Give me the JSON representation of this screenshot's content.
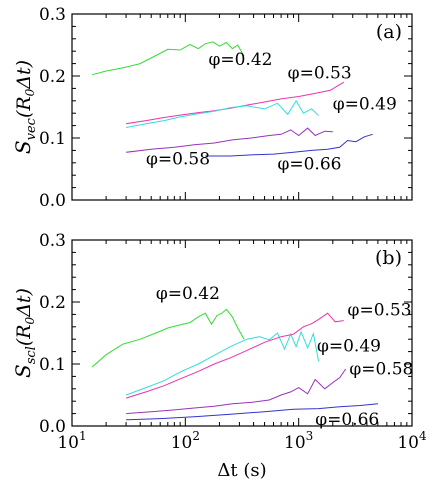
{
  "chart_data": [
    {
      "type": "line",
      "panel_label": "(a)",
      "ylabel_main": "S",
      "ylabel_sub": "vec",
      "ylabel_args": "(R",
      "ylabel_args_sub": "0",
      "ylabel_tail": "Δt)",
      "xscale": "log",
      "xlim": [
        10,
        10000
      ],
      "ylim": [
        0.0,
        0.3
      ],
      "yticks": [
        "0.0",
        "0.1",
        "0.2",
        "0.3"
      ],
      "grid": false,
      "series": [
        {
          "name": "φ=0.42",
          "color": "#33dd33",
          "x": [
            15,
            20,
            28,
            40,
            55,
            70,
            90,
            110,
            130,
            150,
            175,
            200,
            230,
            260,
            290,
            330
          ],
          "y": [
            0.202,
            0.208,
            0.213,
            0.22,
            0.233,
            0.243,
            0.242,
            0.251,
            0.244,
            0.252,
            0.255,
            0.248,
            0.254,
            0.244,
            0.25,
            0.232
          ]
        },
        {
          "name": "φ=0.53",
          "color": "#ee33aa",
          "x": [
            30,
            45,
            65,
            90,
            130,
            180,
            250,
            350,
            500,
            700,
            1000,
            1400,
            1900,
            2500
          ],
          "y": [
            0.123,
            0.128,
            0.133,
            0.137,
            0.141,
            0.144,
            0.148,
            0.153,
            0.158,
            0.163,
            0.167,
            0.172,
            0.177,
            0.19
          ]
        },
        {
          "name": "φ=0.49",
          "color": "#33dddd",
          "x": [
            30,
            45,
            65,
            90,
            130,
            180,
            250,
            350,
            500,
            650,
            800,
            950,
            1100,
            1300,
            1500
          ],
          "y": [
            0.117,
            0.123,
            0.128,
            0.134,
            0.139,
            0.143,
            0.149,
            0.152,
            0.147,
            0.156,
            0.138,
            0.16,
            0.14,
            0.147,
            0.136
          ]
        },
        {
          "name": "φ=0.58",
          "color": "#9933bb",
          "x": [
            30,
            50,
            80,
            120,
            180,
            260,
            380,
            550,
            700,
            850,
            1000,
            1200,
            1400,
            1700,
            2000
          ],
          "y": [
            0.077,
            0.082,
            0.085,
            0.089,
            0.092,
            0.097,
            0.1,
            0.104,
            0.106,
            0.113,
            0.104,
            0.116,
            0.104,
            0.111,
            0.11
          ]
        },
        {
          "name": "φ=0.66",
          "color": "#3333cc",
          "x": [
            150,
            250,
            400,
            600,
            900,
            1300,
            1800,
            2300,
            2700,
            3200,
            3800,
            4500
          ],
          "y": [
            0.071,
            0.071,
            0.073,
            0.074,
            0.077,
            0.08,
            0.082,
            0.085,
            0.096,
            0.094,
            0.102,
            0.106
          ]
        }
      ],
      "annotations": [
        {
          "text": "φ=0.42",
          "x": 160,
          "y": 0.218
        },
        {
          "text": "φ=0.53",
          "x": 800,
          "y": 0.196
        },
        {
          "text": "φ=0.49",
          "x": 2000,
          "y": 0.146
        },
        {
          "text": "φ=0.58",
          "x": 45,
          "y": 0.057
        },
        {
          "text": "φ=0.66",
          "x": 650,
          "y": 0.049
        }
      ]
    },
    {
      "type": "line",
      "panel_label": "(b)",
      "ylabel_main": "S",
      "ylabel_sub": "scl",
      "ylabel_args": "(R",
      "ylabel_args_sub": "0",
      "ylabel_tail": "Δt)",
      "xscale": "log",
      "xlim": [
        10,
        10000
      ],
      "ylim": [
        0.0,
        0.3
      ],
      "yticks": [
        "0.0",
        "0.1",
        "0.2",
        "0.3"
      ],
      "grid": false,
      "series": [
        {
          "name": "φ=0.42",
          "color": "#33dd33",
          "x": [
            15,
            20,
            28,
            40,
            55,
            70,
            90,
            110,
            130,
            150,
            170,
            190,
            210,
            230,
            260,
            290,
            330
          ],
          "y": [
            0.095,
            0.115,
            0.132,
            0.14,
            0.15,
            0.158,
            0.163,
            0.167,
            0.176,
            0.182,
            0.164,
            0.178,
            0.182,
            0.188,
            0.176,
            0.158,
            0.14
          ]
        },
        {
          "name": "φ=0.49",
          "color": "#33dddd",
          "x": [
            30,
            45,
            65,
            90,
            130,
            180,
            250,
            350,
            450,
            550,
            650,
            750,
            850,
            950,
            1050,
            1200,
            1350,
            1500
          ],
          "y": [
            0.05,
            0.062,
            0.073,
            0.087,
            0.1,
            0.114,
            0.128,
            0.14,
            0.144,
            0.139,
            0.15,
            0.124,
            0.148,
            0.128,
            0.152,
            0.126,
            0.149,
            0.104
          ]
        },
        {
          "name": "φ=0.53",
          "color": "#ee33aa",
          "x": [
            30,
            45,
            65,
            90,
            130,
            180,
            250,
            350,
            500,
            700,
            900,
            1100,
            1300,
            1500,
            1800,
            2100,
            2500
          ],
          "y": [
            0.045,
            0.055,
            0.065,
            0.076,
            0.088,
            0.1,
            0.11,
            0.122,
            0.135,
            0.144,
            0.148,
            0.16,
            0.165,
            0.172,
            0.182,
            0.168,
            0.17
          ]
        },
        {
          "name": "φ=0.58",
          "color": "#9933bb",
          "x": [
            30,
            50,
            80,
            120,
            180,
            260,
            380,
            550,
            700,
            850,
            1000,
            1200,
            1400,
            1700,
            2000,
            2300,
            2600
          ],
          "y": [
            0.02,
            0.023,
            0.026,
            0.029,
            0.032,
            0.036,
            0.038,
            0.042,
            0.05,
            0.055,
            0.062,
            0.052,
            0.075,
            0.06,
            0.07,
            0.078,
            0.092
          ]
        },
        {
          "name": "φ=0.66",
          "color": "#3333cc",
          "x": [
            30,
            60,
            120,
            250,
            500,
            900,
            1500,
            2300,
            3500,
            5000
          ],
          "y": [
            0.01,
            0.012,
            0.015,
            0.019,
            0.023,
            0.027,
            0.028,
            0.031,
            0.033,
            0.036
          ]
        }
      ],
      "annotations": [
        {
          "text": "φ=0.42",
          "x": 55,
          "y": 0.205
        },
        {
          "text": "φ=0.53",
          "x": 2700,
          "y": 0.178
        },
        {
          "text": "φ=0.49",
          "x": 1450,
          "y": 0.12
        },
        {
          "text": "φ=0.58",
          "x": 2800,
          "y": 0.083
        },
        {
          "text": "φ=0.66",
          "x": 1400,
          "y": 0.002
        }
      ]
    }
  ],
  "xaxis": {
    "ticks": [
      {
        "value": 10,
        "base": "10",
        "exp": "1"
      },
      {
        "value": 100,
        "base": "10",
        "exp": "2"
      },
      {
        "value": 1000,
        "base": "10",
        "exp": "3"
      },
      {
        "value": 10000,
        "base": "10",
        "exp": "4"
      }
    ],
    "label": "Δt (s)"
  }
}
